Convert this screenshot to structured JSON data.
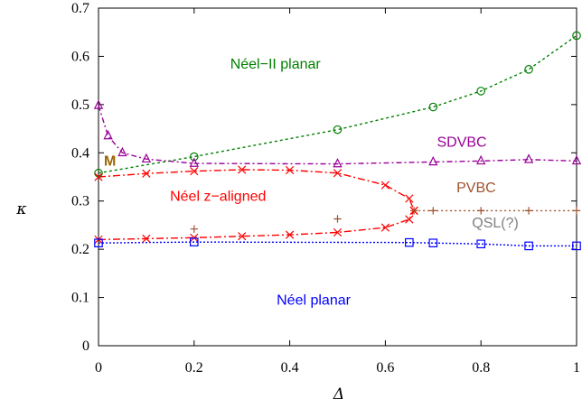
{
  "chart_data": {
    "type": "line",
    "xlabel": "Δ",
    "ylabel": "κ",
    "xlim": [
      0,
      1
    ],
    "ylim": [
      0,
      0.7
    ],
    "xticks": [
      "0",
      "0.2",
      "0.4",
      "0.6",
      "0.8",
      "1"
    ],
    "yticks": [
      "0",
      "0.1",
      "0.2",
      "0.3",
      "0.4",
      "0.5",
      "0.6",
      "0.7"
    ],
    "grid": false,
    "legend": "none",
    "series": [
      {
        "key": "neel2",
        "color": "#008000",
        "marker": "circle",
        "dash": "3,3",
        "x": [
          0,
          0.2,
          0.5,
          0.7,
          0.8,
          0.9,
          1.0
        ],
        "y": [
          0.358,
          0.392,
          0.448,
          0.495,
          0.528,
          0.573,
          0.643
        ]
      },
      {
        "key": "sdvbc",
        "color": "#990099",
        "marker": "triangle",
        "dash": "6,3,2,3",
        "x": [
          0,
          0.02,
          0.05,
          0.1,
          0.2,
          0.5,
          0.7,
          0.8,
          0.9,
          1.0
        ],
        "y": [
          0.498,
          0.435,
          0.4,
          0.387,
          0.378,
          0.377,
          0.381,
          0.383,
          0.386,
          0.383
        ]
      },
      {
        "key": "neelz_upper",
        "color": "#ff0000",
        "marker": "cross",
        "dash": "8,3,2,3",
        "x": [
          0,
          0.1,
          0.2,
          0.3,
          0.4,
          0.5,
          0.6,
          0.65,
          0.66
        ],
        "y": [
          0.35,
          0.357,
          0.362,
          0.365,
          0.364,
          0.358,
          0.333,
          0.305,
          0.28
        ]
      },
      {
        "key": "neelz_lower",
        "color": "#ff0000",
        "marker": "cross",
        "dash": "8,3,2,3",
        "x": [
          0,
          0.1,
          0.2,
          0.3,
          0.4,
          0.5,
          0.6,
          0.65,
          0.66
        ],
        "y": [
          0.22,
          0.222,
          0.224,
          0.227,
          0.23,
          0.235,
          0.245,
          0.262,
          0.28
        ]
      },
      {
        "key": "pvbc",
        "color": "#a0522d",
        "marker": "plus",
        "dash": "2,3",
        "x": [
          0.66,
          0.7,
          0.8,
          0.9,
          1.0
        ],
        "y": [
          0.28,
          0.28,
          0.28,
          0.28,
          0.28
        ]
      },
      {
        "key": "neelplanar",
        "color": "#0000ff",
        "marker": "square",
        "dash": "2,2",
        "x": [
          0,
          0.2,
          0.65,
          0.7,
          0.8,
          0.9,
          1.0
        ],
        "y": [
          0.213,
          0.215,
          0.214,
          0.213,
          0.211,
          0.207,
          0.207
        ]
      }
    ],
    "extra_points": [
      {
        "marker": "plus",
        "color": "#a0522d",
        "x": 0.2,
        "y": 0.242
      },
      {
        "marker": "plus",
        "color": "#a0522d",
        "x": 0.5,
        "y": 0.263
      }
    ],
    "annotations": [
      {
        "text": "Néel−II planar",
        "x": 0.37,
        "y": 0.575,
        "color": "#008000"
      },
      {
        "text": "SDVBC",
        "x": 0.76,
        "y": 0.413,
        "color": "#990099"
      },
      {
        "text": "M",
        "x": 0.024,
        "y": 0.373,
        "color": "#996600"
      },
      {
        "text": "Néel z−aligned",
        "x": 0.25,
        "y": 0.3,
        "color": "#ff0000"
      },
      {
        "text": "PVBC",
        "x": 0.79,
        "y": 0.318,
        "color": "#a0522d"
      },
      {
        "text": "QSL(?)",
        "x": 0.83,
        "y": 0.245,
        "color": "#808080"
      },
      {
        "text": "Néel planar",
        "x": 0.45,
        "y": 0.085,
        "color": "#0000ff"
      }
    ]
  }
}
